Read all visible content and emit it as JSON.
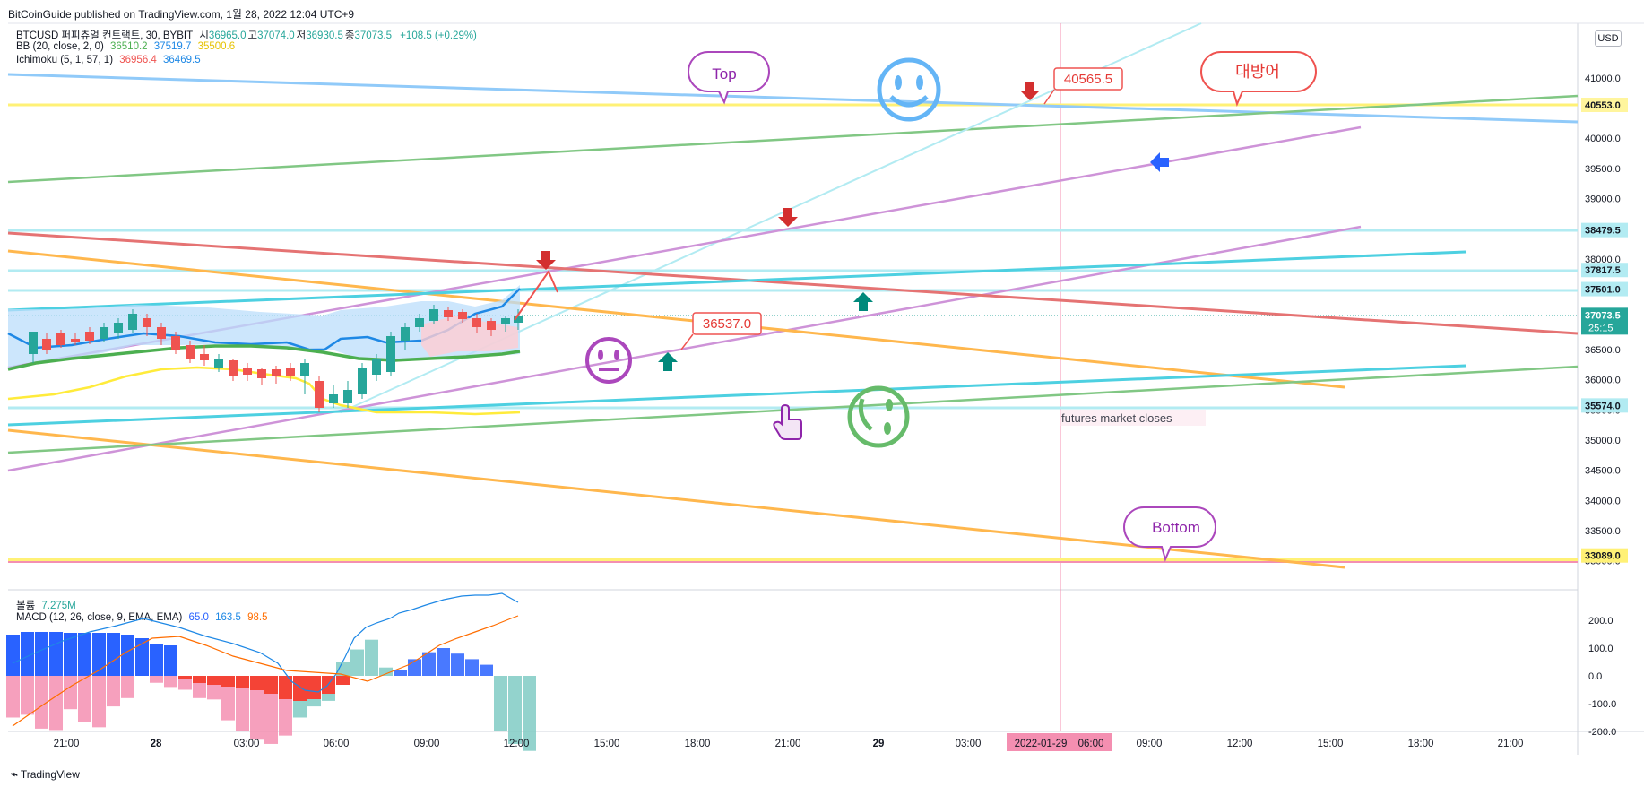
{
  "header": {
    "published": "BitCoinGuide published on TradingView.com, 1월 28, 2022 12:04 UTC+9",
    "watermark": "TradingView"
  },
  "legend": {
    "symbol": "BTCUSD 퍼피츄얼 컨트랙트, 30, BYBIT",
    "ohlc": [
      {
        "label": "시",
        "value": "36965.0"
      },
      {
        "label": "고",
        "value": "37074.0"
      },
      {
        "label": "저",
        "value": "36930.5"
      },
      {
        "label": "종",
        "value": "37073.5"
      }
    ],
    "change": "+108.5 (+0.29%)",
    "bb": {
      "label": "BB (20, close, 2, 0)",
      "values": [
        "36510.2",
        "37519.7",
        "35500.6"
      ]
    },
    "ichimoku": {
      "label": "Ichimoku (5, 1, 57, 1)",
      "values": [
        "36956.4",
        "36469.5"
      ]
    },
    "volume": {
      "label": "볼륨",
      "value": "7.275M"
    },
    "macd": {
      "label": "MACD (12, 26, close, 9, EMA, EMA)",
      "values": [
        "65.0",
        "163.5",
        "98.5"
      ]
    }
  },
  "colors": {
    "up": "#26a69a",
    "down": "#ef5350",
    "bb_mid": "#4caf50",
    "bb_up": "#1e88e5",
    "bb_low": "#ffeb3b",
    "macd": "#2962ff",
    "signal": "#ff6d00"
  },
  "axis": {
    "currency": "USD",
    "price_ticks": [
      "41000.0",
      "40000.0",
      "39500.0",
      "39000.0",
      "38000.0",
      "37500.0",
      "37000.0",
      "36500.0",
      "36000.0",
      "35500.0",
      "35000.0",
      "34500.0",
      "34000.0",
      "33500.0",
      "33000.0"
    ],
    "price_labels": [
      {
        "text": "40553.0",
        "price": 40553,
        "bg": "#fff59d",
        "fg": "#131722"
      },
      {
        "text": "38479.5",
        "price": 38479.5,
        "bg": "#b2ebf2",
        "fg": "#131722"
      },
      {
        "text": "37817.5",
        "price": 37817.5,
        "bg": "#b2ebf2",
        "fg": "#131722"
      },
      {
        "text": "37501.0",
        "price": 37501,
        "bg": "#b2ebf2",
        "fg": "#131722"
      },
      {
        "text": "37073.5",
        "price": 37073.5,
        "bg": "#26a69a",
        "fg": "#ffffff",
        "sub": "25:15"
      },
      {
        "text": "35574.0",
        "price": 35574,
        "bg": "#b2ebf2",
        "fg": "#131722"
      },
      {
        "text": "33089.0",
        "price": 33089,
        "bg": "#fff176",
        "fg": "#131722"
      }
    ],
    "macd_ticks": [
      "200.0",
      "100.0",
      "0.0",
      "-100.0",
      "-200.0"
    ],
    "time_ticks": [
      "21:00",
      "28",
      "03:00",
      "06:00",
      "09:00",
      "12:00",
      "15:00",
      "18:00",
      "21:00",
      "29",
      "03:00",
      "2022-01-29",
      "06:00",
      "09:00",
      "12:00",
      "15:00",
      "18:00",
      "21:00"
    ],
    "crosshair_time": "2022-01-29"
  },
  "annotations": {
    "top_bubble": "Top",
    "bottom_bubble": "Bottom",
    "defense_bubble": "대방어",
    "price_callout_high": "40565.5",
    "price_callout_mid": "36537.0",
    "futures_note": "futures market closes"
  }
}
